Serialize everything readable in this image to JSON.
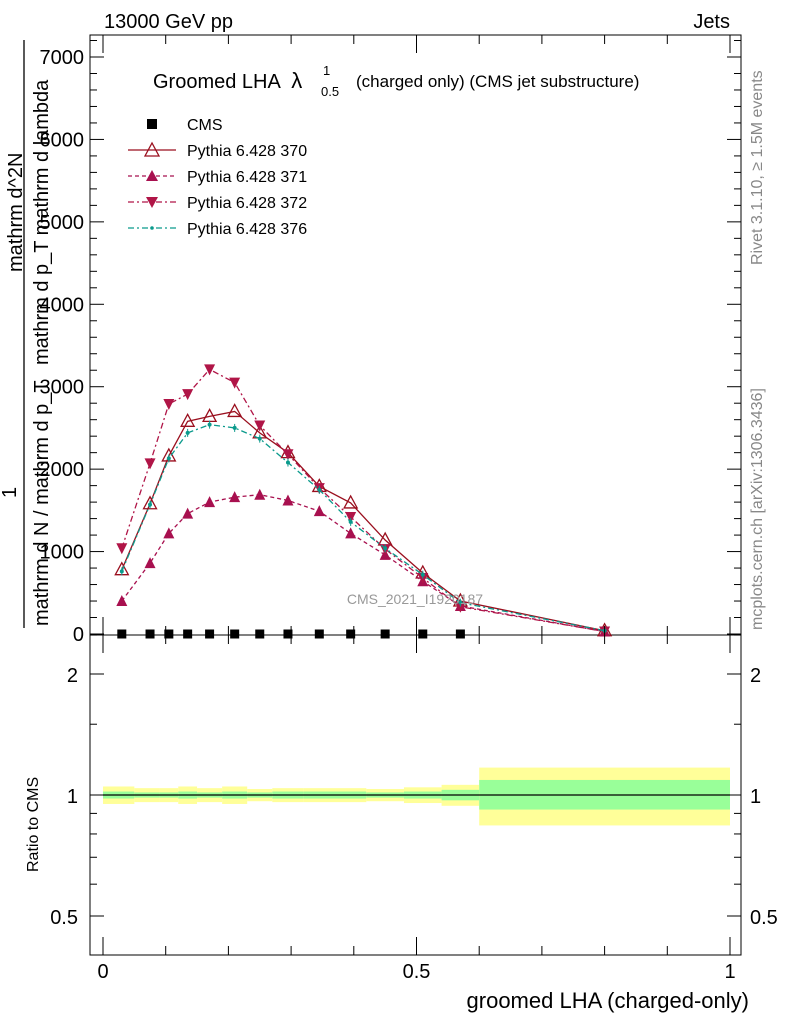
{
  "header": {
    "left": "13000 GeV pp",
    "right": "Jets"
  },
  "side": {
    "top": "Rivet 3.1.10, ≥ 1.5M events",
    "bottom": "mcplots.cern.ch [arXiv:1306.3436]"
  },
  "watermark": "CMS_2021_I1920187",
  "title": {
    "main": "Groomed LHA",
    "lambda": "λ",
    "sup": "1",
    "sub": "0.5",
    "rest": "(charged only) (CMS jet substructure)"
  },
  "colors": {
    "cms": "#000000",
    "p370": "#9a0f1e",
    "p371": "#a8104f",
    "p372": "#b01547",
    "p376": "#0b9a8c",
    "band1": "#ffff99",
    "band2": "#99ff99"
  },
  "chart_data": [
    {
      "type": "line",
      "ylabel_num": "1",
      "ylabel_den": "mathrm d N / mathrm d p_T",
      "ylabel_top": "mathrm d^2N",
      "ylabel_bot": "mathrm d p_T mathrm d lambda",
      "ylim": [
        0,
        7200
      ],
      "xlim": [
        -0.02,
        1.0
      ],
      "yticks": [
        0,
        1000,
        2000,
        3000,
        4000,
        5000,
        6000,
        7000
      ],
      "ytick_labels": [
        "0",
        "1000",
        "2000",
        "3000",
        "4000",
        "5000",
        "6000",
        "7000"
      ],
      "series": [
        {
          "name": "CMS",
          "style": "square",
          "x": [
            0.03,
            0.075,
            0.105,
            0.135,
            0.17,
            0.21,
            0.25,
            0.295,
            0.345,
            0.395,
            0.45,
            0.51,
            0.57
          ],
          "y": [
            0,
            0,
            0,
            0,
            0,
            0,
            0,
            0,
            0,
            0,
            0,
            0,
            0
          ]
        },
        {
          "name": "Pythia 6.428 370",
          "style": "open-triangle-up",
          "x": [
            0.03,
            0.075,
            0.105,
            0.135,
            0.17,
            0.21,
            0.25,
            0.295,
            0.345,
            0.395,
            0.45,
            0.51,
            0.57,
            0.8
          ],
          "y": [
            780,
            1580,
            2160,
            2580,
            2640,
            2700,
            2440,
            2200,
            1790,
            1590,
            1140,
            740,
            400,
            40
          ]
        },
        {
          "name": "Pythia 6.428 371",
          "style": "triangle-up",
          "x": [
            0.03,
            0.075,
            0.105,
            0.135,
            0.17,
            0.21,
            0.25,
            0.295,
            0.345,
            0.395,
            0.45,
            0.51,
            0.57,
            0.8
          ],
          "y": [
            400,
            860,
            1220,
            1460,
            1600,
            1660,
            1690,
            1620,
            1490,
            1220,
            960,
            640,
            340,
            30
          ]
        },
        {
          "name": "Pythia 6.428 372",
          "style": "triangle-down",
          "x": [
            0.03,
            0.075,
            0.105,
            0.135,
            0.17,
            0.21,
            0.25,
            0.295,
            0.345,
            0.395,
            0.45,
            0.51,
            0.57,
            0.8
          ],
          "y": [
            1040,
            2070,
            2790,
            2910,
            3210,
            3050,
            2530,
            2180,
            1770,
            1420,
            1030,
            680,
            330,
            30
          ]
        },
        {
          "name": "Pythia 6.428 376",
          "style": "dot",
          "x": [
            0.03,
            0.075,
            0.105,
            0.135,
            0.17,
            0.21,
            0.25,
            0.295,
            0.345,
            0.395,
            0.45,
            0.51,
            0.57,
            0.8
          ],
          "y": [
            760,
            1570,
            2130,
            2440,
            2540,
            2500,
            2370,
            2080,
            1750,
            1360,
            1040,
            720,
            380,
            40
          ]
        }
      ]
    },
    {
      "type": "area",
      "ylabel": "Ratio to CMS",
      "xlabel": "groomed LHA (charged-only)",
      "ylim": [
        0.4,
        2.5
      ],
      "yticks": [
        0.5,
        1,
        2
      ],
      "ytick_labels": [
        "0.5",
        "1",
        "2"
      ],
      "xticks": [
        0,
        0.5,
        1
      ],
      "xtick_labels": [
        "0",
        "0.5",
        "1"
      ],
      "bins": [
        {
          "x0": 0.0,
          "x1": 0.05,
          "inner": [
            0.98,
            1.02
          ],
          "outer": [
            0.95,
            1.05
          ]
        },
        {
          "x0": 0.05,
          "x1": 0.09,
          "inner": [
            0.985,
            1.015
          ],
          "outer": [
            0.96,
            1.04
          ]
        },
        {
          "x0": 0.09,
          "x1": 0.12,
          "inner": [
            0.985,
            1.015
          ],
          "outer": [
            0.96,
            1.04
          ]
        },
        {
          "x0": 0.12,
          "x1": 0.15,
          "inner": [
            0.98,
            1.02
          ],
          "outer": [
            0.95,
            1.05
          ]
        },
        {
          "x0": 0.15,
          "x1": 0.19,
          "inner": [
            0.985,
            1.015
          ],
          "outer": [
            0.96,
            1.04
          ]
        },
        {
          "x0": 0.19,
          "x1": 0.23,
          "inner": [
            0.98,
            1.02
          ],
          "outer": [
            0.95,
            1.05
          ]
        },
        {
          "x0": 0.23,
          "x1": 0.27,
          "inner": [
            0.985,
            1.015
          ],
          "outer": [
            0.965,
            1.035
          ]
        },
        {
          "x0": 0.27,
          "x1": 0.32,
          "inner": [
            0.98,
            1.02
          ],
          "outer": [
            0.96,
            1.04
          ]
        },
        {
          "x0": 0.32,
          "x1": 0.37,
          "inner": [
            0.98,
            1.02
          ],
          "outer": [
            0.96,
            1.04
          ]
        },
        {
          "x0": 0.37,
          "x1": 0.42,
          "inner": [
            0.98,
            1.02
          ],
          "outer": [
            0.96,
            1.04
          ]
        },
        {
          "x0": 0.42,
          "x1": 0.48,
          "inner": [
            0.985,
            1.015
          ],
          "outer": [
            0.965,
            1.035
          ]
        },
        {
          "x0": 0.48,
          "x1": 0.54,
          "inner": [
            0.98,
            1.02
          ],
          "outer": [
            0.955,
            1.045
          ]
        },
        {
          "x0": 0.54,
          "x1": 0.6,
          "inner": [
            0.97,
            1.03
          ],
          "outer": [
            0.94,
            1.06
          ]
        },
        {
          "x0": 0.6,
          "x1": 1.0,
          "inner": [
            0.92,
            1.09
          ],
          "outer": [
            0.84,
            1.17
          ]
        }
      ]
    }
  ]
}
